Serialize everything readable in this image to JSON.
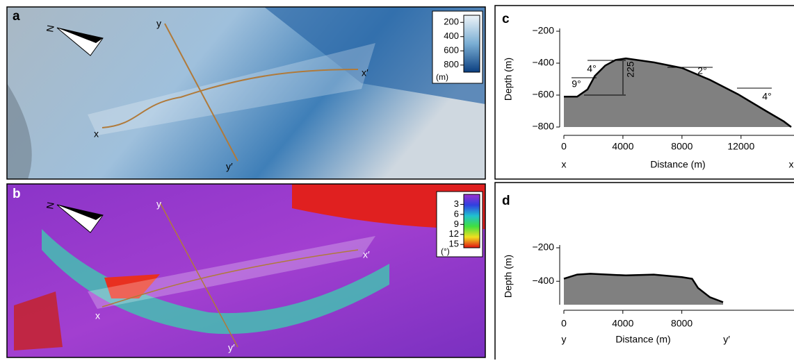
{
  "panels": {
    "a": {
      "label": "a",
      "north": "N",
      "points": [
        "y",
        "x",
        "x′",
        "y′"
      ],
      "colorbar": {
        "lim": [
          100,
          900
        ],
        "ticks": [
          200,
          400,
          600,
          800
        ],
        "unit": "(m)"
      }
    },
    "b": {
      "label": "b",
      "north": "N",
      "points": [
        "y",
        "x",
        "x′",
        "y′"
      ],
      "colorbar": {
        "lim": [
          0,
          16
        ],
        "ticks": [
          3,
          6,
          9,
          12,
          15
        ],
        "unit": "(°)"
      }
    }
  },
  "chart_data": [
    {
      "type": "area",
      "panel": "c",
      "ylabel": "Depth (m)",
      "xlabel": "Distance (m)",
      "x_start_label": "x",
      "x_end_label": "x",
      "color": "#808080",
      "x": [
        0,
        900,
        1600,
        2100,
        2800,
        3500,
        4200,
        6100,
        8000,
        9900,
        11800,
        13700,
        14900,
        15400
      ],
      "values": [
        -610,
        -610,
        -565,
        -480,
        -415,
        -380,
        -370,
        -395,
        -430,
        -505,
        -595,
        -700,
        -765,
        -800
      ],
      "xlim": [
        0,
        15400
      ],
      "ylim": [
        -800,
        -200
      ],
      "xticks": [
        0,
        4000,
        8000,
        12000
      ],
      "yticks": [
        {
          "value": -200,
          "label": "−200"
        },
        {
          "value": -400,
          "label": "−400"
        },
        {
          "value": -600,
          "label": "−600"
        },
        {
          "value": -800,
          "label": "−800"
        }
      ],
      "annotations": [
        "4°",
        "9°",
        "225",
        "2°",
        "4°"
      ]
    },
    {
      "type": "area",
      "panel": "d",
      "ylabel": "Depth (m)",
      "xlabel": "Distance (m)",
      "x_start_label": "y",
      "x_end_label": "y′",
      "color": "#808080",
      "x": [
        0,
        900,
        1800,
        4200,
        6100,
        8000,
        8700,
        9100,
        9900,
        10800
      ],
      "values": [
        -385,
        -360,
        -355,
        -365,
        -360,
        -375,
        -385,
        -440,
        -495,
        -525
      ],
      "xlim": [
        0,
        10800
      ],
      "ylim": [
        -540,
        -200
      ],
      "xticks": [
        0,
        4000,
        8000
      ],
      "yticks": [
        {
          "value": -200,
          "label": "−200"
        },
        {
          "value": -400,
          "label": "−400"
        }
      ],
      "annotations": []
    }
  ]
}
